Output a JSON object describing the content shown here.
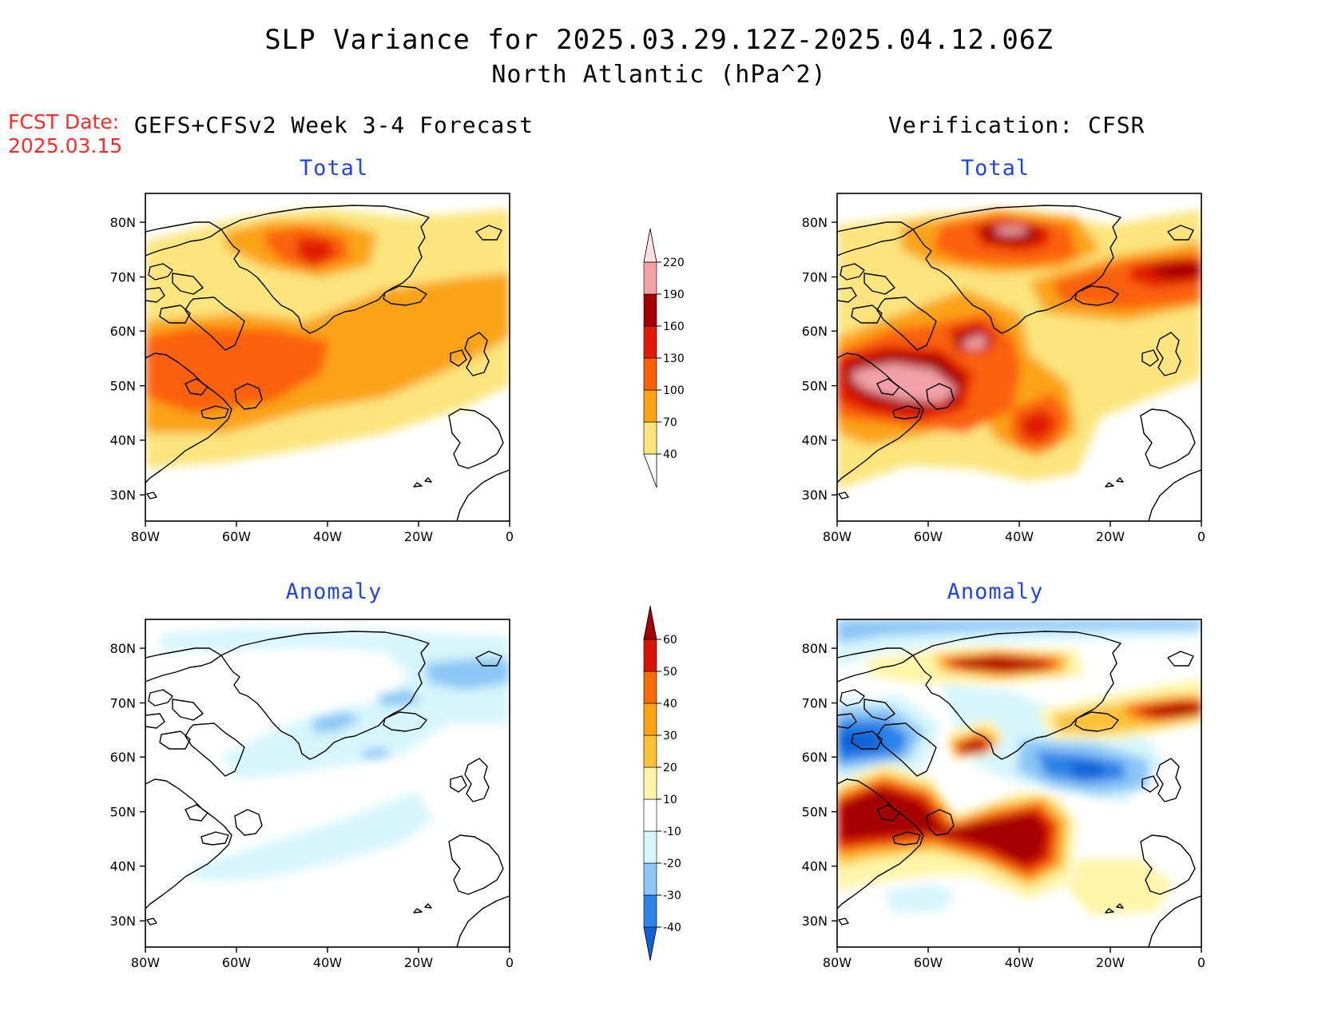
{
  "header": {
    "title": "SLP Variance for 2025.03.29.12Z-2025.04.12.06Z",
    "subtitle": "North Atlantic (hPa^2)"
  },
  "fcst": {
    "label": "FCST Date:",
    "date": "2025.03.15"
  },
  "columns": {
    "left": "GEFS+CFSv2 Week 3-4 Forecast",
    "right": "Verification: CFSR"
  },
  "panels": {
    "forecast_total": {
      "title": "Total"
    },
    "forecast_anomaly": {
      "title": "Anomaly"
    },
    "verification_total": {
      "title": "Total"
    },
    "verification_anomaly": {
      "title": "Anomaly"
    }
  },
  "axes": {
    "lat_labels": [
      "80N",
      "70N",
      "60N",
      "50N",
      "40N",
      "30N"
    ],
    "lon_labels": [
      "80W",
      "60W",
      "40W",
      "20W",
      "0"
    ]
  },
  "colorbars": {
    "total": {
      "levels": [
        "40",
        "70",
        "100",
        "130",
        "160",
        "190",
        "220"
      ],
      "colors": [
        "#fbe57b",
        "#fba313",
        "#fb6008",
        "#e01a06",
        "#a50000",
        "#f2a2a6",
        "#fbe0e0"
      ]
    },
    "anomaly": {
      "levels": [
        "-40",
        "-30",
        "-20",
        "-10",
        "10",
        "20",
        "30",
        "40",
        "50",
        "60"
      ],
      "colors": [
        "#1061d6",
        "#2c83e8",
        "#8bc6f6",
        "#d6f6fb",
        "#ffffff",
        "#fff5a8",
        "#fbc237",
        "#fba313",
        "#f86b0b",
        "#d81404",
        "#a50000"
      ]
    }
  },
  "colors": {
    "title_blue": "#2244ee",
    "fcst_red": "#ff2a2a"
  }
}
